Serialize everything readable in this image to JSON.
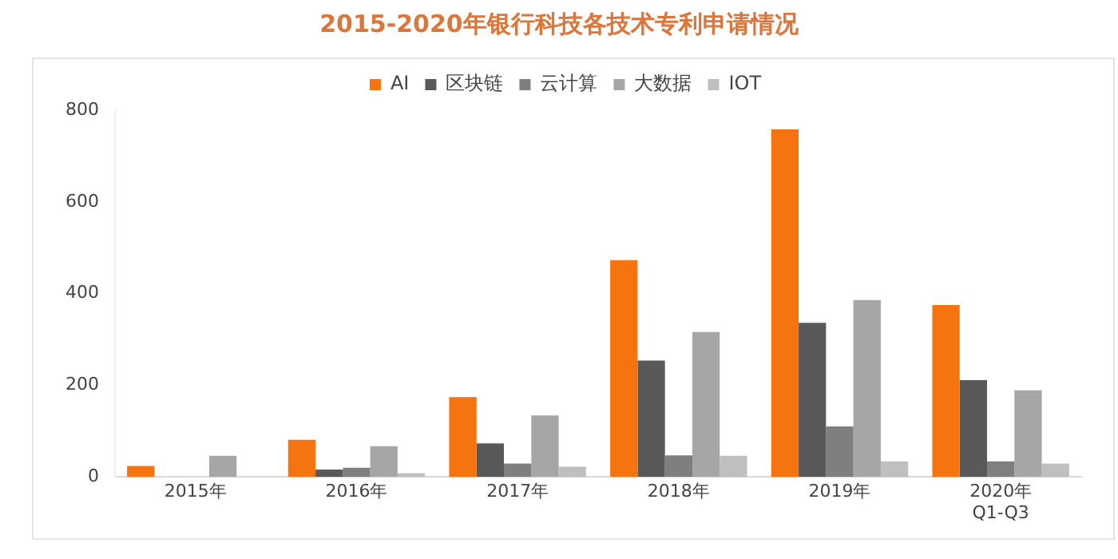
{
  "chart_data": {
    "type": "bar",
    "title": "2015-2020年银行科技各技术专利申请情况",
    "categories": [
      "2015年",
      "2016年",
      "2017年",
      "2018年",
      "2019年",
      "2020年\nQ1-Q3"
    ],
    "series": [
      {
        "name": "AI",
        "color": "#f5740f",
        "values": [
          24,
          81,
          174,
          473,
          758,
          375
        ]
      },
      {
        "name": "区块链",
        "color": "#595959",
        "values": [
          0,
          16,
          73,
          254,
          336,
          211
        ]
      },
      {
        "name": "云计算",
        "color": "#7f7f7f",
        "values": [
          0,
          20,
          29,
          47,
          110,
          34
        ]
      },
      {
        "name": "大数据",
        "color": "#a6a6a6",
        "values": [
          46,
          67,
          134,
          316,
          386,
          189
        ]
      },
      {
        "name": "IOT",
        "color": "#bfbfbf",
        "values": [
          0,
          8,
          22,
          46,
          34,
          29
        ]
      }
    ],
    "ylim": [
      0,
      800
    ],
    "yticks": [
      0,
      200,
      400,
      600,
      800
    ],
    "grid": false,
    "legend": "top"
  }
}
